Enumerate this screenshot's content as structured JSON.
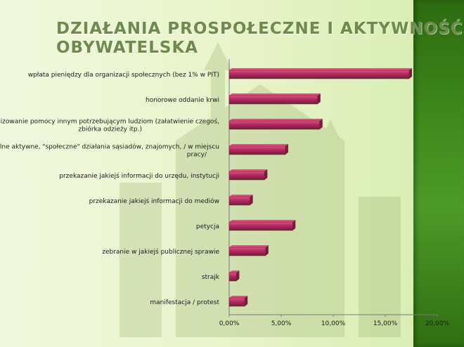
{
  "title": [
    "DZIAŁANIA PROSPOŁECZNE I AKTYWNOŚĆ",
    "OBYWATELSKA"
  ],
  "colors": {
    "bar": "#b3275e",
    "bar_highlight": "#d9567f",
    "bar_dark": "#7a1a41",
    "band": "#3f8a1c"
  },
  "chart_data": {
    "type": "bar",
    "orientation": "horizontal",
    "categories": [
      [
        "wpłata pieniędzy dla organizacji społecznych (bez 1% w PIT)"
      ],
      [
        "honorowe oddanie krwi"
      ],
      [
        "organizowanie pomocy  innym potrzebującym ludziom (załatwienie czegoś,",
        "zbiórka odzieży itp.)"
      ],
      [
        "wspólne aktywne, \"społeczne\" działania sąsiadów,  znajomych,  / w miejscu",
        "pracy/"
      ],
      [
        "przekazanie jakiejś informacji do urzędu, instytucji"
      ],
      [
        "przekazanie jakiejś informacji do mediów"
      ],
      [
        "petycja"
      ],
      [
        "zebranie w jakiejś publicznej sprawie"
      ],
      [
        "strajk"
      ],
      [
        "manifestacja / protest"
      ]
    ],
    "values": [
      17.3,
      8.5,
      8.7,
      5.4,
      3.4,
      2.0,
      6.1,
      3.5,
      0.7,
      1.5
    ],
    "xlim": [
      0,
      20
    ],
    "ticks": [
      "0,00%",
      "5,00%",
      "10,00%",
      "15,00%",
      "20,00%"
    ],
    "tick_values": [
      0,
      5,
      10,
      15,
      20
    ],
    "grid": false,
    "legend": "none"
  }
}
